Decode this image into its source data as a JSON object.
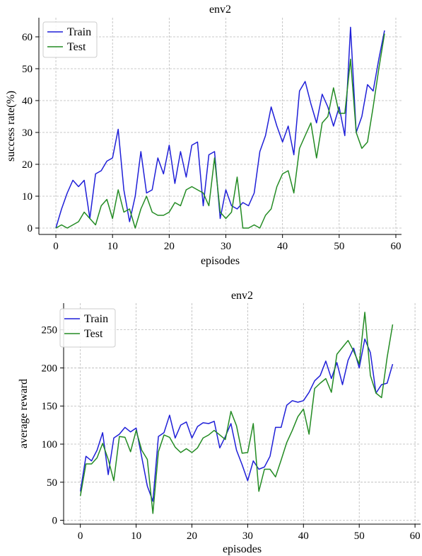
{
  "chart_data": [
    {
      "type": "line",
      "title": "env2",
      "xlabel": "episodes",
      "ylabel": "success rate(%)",
      "xlim": [
        -3,
        61
      ],
      "ylim": [
        -2,
        66
      ],
      "xticks": [
        0,
        10,
        20,
        30,
        40,
        50,
        60
      ],
      "yticks": [
        0,
        10,
        20,
        30,
        40,
        50,
        60
      ],
      "grid": true,
      "legend": "top-left",
      "series": [
        {
          "name": "Train",
          "color": "#1f1fd8",
          "x": [
            0,
            1,
            2,
            3,
            4,
            5,
            6,
            7,
            8,
            9,
            10,
            11,
            12,
            13,
            14,
            15,
            16,
            17,
            18,
            19,
            20,
            21,
            22,
            23,
            24,
            25,
            26,
            27,
            28,
            29,
            30,
            31,
            32,
            33,
            34,
            35,
            36,
            37,
            38,
            39,
            40,
            41,
            42,
            43,
            44,
            45,
            46,
            47,
            48,
            49,
            50,
            51,
            52,
            53,
            54,
            55,
            56,
            57,
            58
          ],
          "values": [
            0,
            6,
            11,
            15,
            13,
            15,
            3,
            17,
            18,
            21,
            22,
            31,
            12,
            2,
            10,
            24,
            11,
            12,
            22,
            17,
            26,
            14,
            24,
            16,
            26,
            27,
            7,
            23,
            24,
            3,
            12,
            7,
            6,
            8,
            7,
            11,
            24,
            29,
            38,
            32,
            27,
            32,
            23,
            43,
            46,
            39,
            33,
            42,
            38,
            32,
            38,
            29,
            63,
            30,
            35,
            45,
            43,
            53,
            62
          ]
        },
        {
          "name": "Test",
          "color": "#238b23",
          "x": [
            0,
            1,
            2,
            3,
            4,
            5,
            6,
            7,
            8,
            9,
            10,
            11,
            12,
            13,
            14,
            15,
            16,
            17,
            18,
            19,
            20,
            21,
            22,
            23,
            24,
            25,
            26,
            27,
            28,
            29,
            30,
            31,
            32,
            33,
            34,
            35,
            36,
            37,
            38,
            39,
            40,
            41,
            42,
            43,
            44,
            45,
            46,
            47,
            48,
            49,
            50,
            51,
            52,
            53,
            54,
            55,
            56,
            57,
            58
          ],
          "values": [
            0,
            1,
            0,
            1,
            2,
            5,
            3,
            1,
            7,
            9,
            3,
            12,
            5,
            6,
            0,
            6,
            10,
            5,
            4,
            4,
            5,
            8,
            7,
            12,
            13,
            12,
            11,
            7,
            22,
            5,
            3,
            5,
            16,
            0,
            0,
            1,
            0,
            4,
            6,
            13,
            17,
            18,
            11,
            25,
            29,
            33,
            22,
            33,
            35,
            44,
            36,
            36,
            53,
            30,
            25,
            27,
            38,
            50,
            61
          ]
        }
      ]
    },
    {
      "type": "line",
      "title": "env2",
      "xlabel": "episodes",
      "ylabel": "average reward",
      "xlim": [
        -3,
        61
      ],
      "ylim": [
        -5,
        285
      ],
      "xticks": [
        0,
        10,
        20,
        30,
        40,
        50,
        60
      ],
      "yticks": [
        0,
        50,
        100,
        150,
        200,
        250
      ],
      "grid": true,
      "legend": "top-left",
      "series": [
        {
          "name": "Train",
          "color": "#1f1fd8",
          "x": [
            0,
            1,
            2,
            3,
            4,
            5,
            6,
            7,
            8,
            9,
            10,
            11,
            12,
            13,
            14,
            15,
            16,
            17,
            18,
            19,
            20,
            21,
            22,
            23,
            24,
            25,
            26,
            27,
            28,
            29,
            30,
            31,
            32,
            33,
            34,
            35,
            36,
            37,
            38,
            39,
            40,
            41,
            42,
            43,
            44,
            45,
            46,
            47,
            48,
            49,
            50,
            51,
            52,
            53,
            54,
            55,
            56
          ],
          "values": [
            38,
            84,
            78,
            92,
            115,
            60,
            108,
            113,
            122,
            116,
            121,
            83,
            45,
            25,
            110,
            115,
            138,
            108,
            125,
            129,
            108,
            123,
            128,
            127,
            130,
            95,
            110,
            127,
            92,
            73,
            52,
            78,
            67,
            70,
            84,
            122,
            122,
            151,
            157,
            155,
            157,
            168,
            183,
            190,
            209,
            186,
            207,
            178,
            210,
            226,
            200,
            238,
            220,
            167,
            178,
            180,
            205
          ]
        },
        {
          "name": "Test",
          "color": "#238b23",
          "x": [
            0,
            1,
            2,
            3,
            4,
            5,
            6,
            7,
            8,
            9,
            10,
            11,
            12,
            13,
            14,
            15,
            16,
            17,
            18,
            19,
            20,
            21,
            22,
            23,
            24,
            25,
            26,
            27,
            28,
            29,
            30,
            31,
            32,
            33,
            34,
            35,
            36,
            37,
            38,
            39,
            40,
            41,
            42,
            43,
            44,
            45,
            46,
            47,
            48,
            49,
            50,
            51,
            52,
            53,
            54,
            55,
            56
          ],
          "values": [
            32,
            74,
            74,
            82,
            101,
            80,
            52,
            110,
            109,
            90,
            118,
            92,
            80,
            9,
            90,
            112,
            109,
            96,
            89,
            94,
            89,
            95,
            108,
            112,
            118,
            112,
            106,
            143,
            124,
            88,
            89,
            127,
            38,
            67,
            67,
            57,
            79,
            102,
            118,
            136,
            146,
            113,
            173,
            180,
            186,
            168,
            218,
            227,
            236,
            222,
            205,
            273,
            190,
            167,
            161,
            214,
            257
          ]
        }
      ]
    }
  ]
}
